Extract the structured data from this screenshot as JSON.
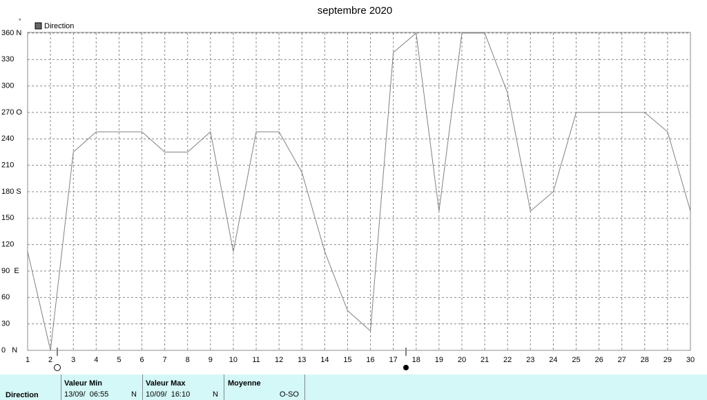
{
  "chart_data": {
    "type": "line",
    "title": "septembre 2020",
    "unit": "°",
    "x": [
      1,
      2,
      3,
      4,
      5,
      6,
      7,
      8,
      9,
      10,
      11,
      12,
      13,
      14,
      15,
      16,
      17,
      18,
      19,
      20,
      21,
      22,
      23,
      24,
      25,
      26,
      27,
      28,
      29,
      30
    ],
    "series": [
      {
        "name": "Direction",
        "color": "#808080",
        "values": [
          112,
          0,
          225,
          248,
          248,
          248,
          225,
          225,
          248,
          112,
          248,
          248,
          202,
          112,
          45,
          22,
          338,
          360,
          158,
          360,
          360,
          292,
          158,
          180,
          270,
          270,
          270,
          270,
          248,
          158
        ]
      }
    ],
    "xlim": [
      1,
      30
    ],
    "xticks": [
      1,
      2,
      3,
      4,
      5,
      6,
      7,
      8,
      9,
      10,
      11,
      12,
      13,
      14,
      15,
      16,
      17,
      18,
      19,
      20,
      21,
      22,
      23,
      24,
      25,
      26,
      27,
      28,
      29,
      30
    ],
    "ylim": [
      0,
      360
    ],
    "yticks": [
      {
        "value": 0,
        "label": "0   N"
      },
      30,
      60,
      {
        "value": 90,
        "label": "90  E"
      },
      120,
      150,
      {
        "value": 180,
        "label": "180 S"
      },
      210,
      240,
      {
        "value": 270,
        "label": "270 O"
      },
      300,
      330,
      {
        "value": 360,
        "label": "360 N"
      }
    ],
    "grid": true
  },
  "summary": {
    "row_label": "Direction",
    "min": {
      "header": "Valeur Min",
      "date": "13/09/  06:55",
      "dir": "N"
    },
    "max": {
      "header": "Valeur Max",
      "date": "10/09/  16:10",
      "dir": "N"
    },
    "mean": {
      "header": "Moyenne",
      "dir": "O-SO"
    }
  }
}
